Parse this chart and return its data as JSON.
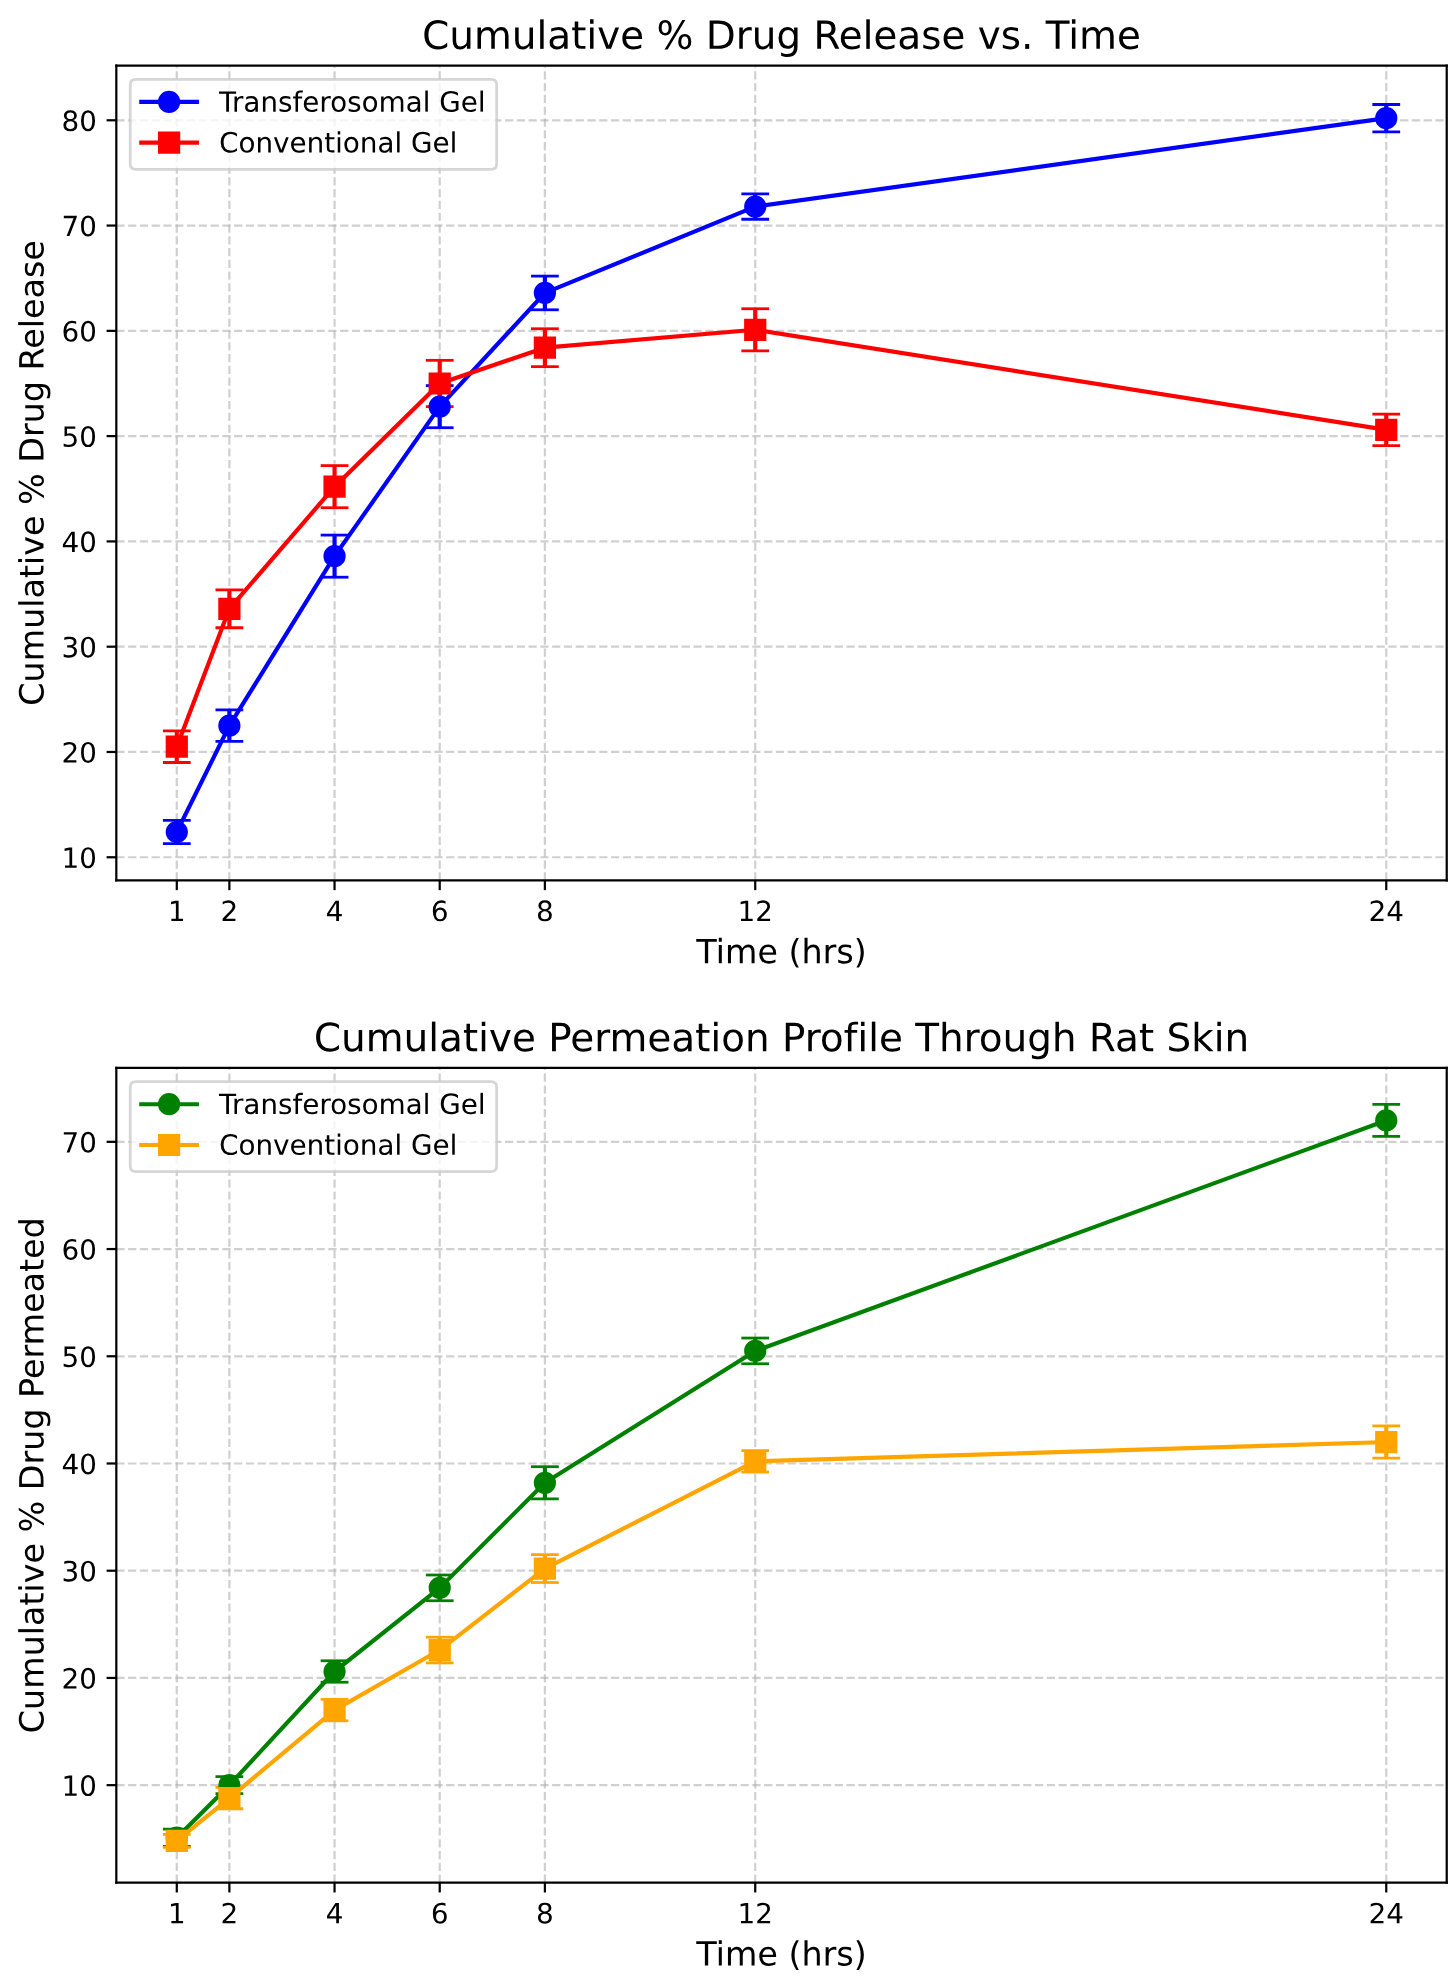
{
  "chart_data": [
    {
      "type": "line",
      "title": "Cumulative % Drug Release vs. Time",
      "xlabel": "Time (hrs)",
      "ylabel": "Cumulative % Drug Release",
      "x": [
        1,
        2,
        4,
        6,
        8,
        12,
        24
      ],
      "xlim": [
        -0.15,
        25.15
      ],
      "xticks": [
        1,
        2,
        4,
        6,
        8,
        12,
        24
      ],
      "ylim": [
        7.8,
        85.2
      ],
      "yticks": [
        10,
        20,
        30,
        40,
        50,
        60,
        70,
        80
      ],
      "grid": true,
      "legend": "top left",
      "series": [
        {
          "name": "Transferosomal Gel",
          "color": "#0000ff",
          "marker": "circle",
          "values": [
            12.4,
            22.5,
            38.6,
            52.8,
            63.6,
            71.8,
            80.2
          ],
          "errors": [
            1.1,
            1.5,
            2.0,
            2.0,
            1.6,
            1.2,
            1.3
          ]
        },
        {
          "name": "Conventional Gel",
          "color": "#ff0000",
          "marker": "square",
          "values": [
            20.5,
            33.6,
            45.2,
            55.0,
            58.4,
            60.1,
            50.6
          ],
          "errors": [
            1.5,
            1.8,
            2.0,
            2.2,
            1.8,
            2.0,
            1.5
          ]
        }
      ]
    },
    {
      "type": "line",
      "title": "Cumulative Permeation Profile Through Rat Skin",
      "xlabel": "Time (hrs)",
      "ylabel": "Cumulative % Drug Permeated",
      "x": [
        1,
        2,
        4,
        6,
        8,
        12,
        24
      ],
      "xlim": [
        -0.15,
        25.15
      ],
      "xticks": [
        1,
        2,
        4,
        6,
        8,
        12,
        24
      ],
      "ylim": [
        0.9,
        76.9
      ],
      "yticks": [
        10,
        20,
        30,
        40,
        50,
        60,
        70
      ],
      "grid": true,
      "legend": "top left",
      "series": [
        {
          "name": "Transferosomal Gel",
          "color": "#008000",
          "marker": "circle",
          "values": [
            5.1,
            10.0,
            20.6,
            28.4,
            38.2,
            50.5,
            72.0
          ],
          "errors": [
            0.8,
            0.8,
            1.0,
            1.2,
            1.5,
            1.2,
            1.5
          ]
        },
        {
          "name": "Conventional Gel",
          "color": "#ffa500",
          "marker": "square",
          "values": [
            4.8,
            8.8,
            17.0,
            22.6,
            30.2,
            40.2,
            42.0
          ],
          "errors": [
            0.6,
            1.0,
            1.0,
            1.2,
            1.3,
            1.0,
            1.5
          ]
        }
      ]
    }
  ]
}
